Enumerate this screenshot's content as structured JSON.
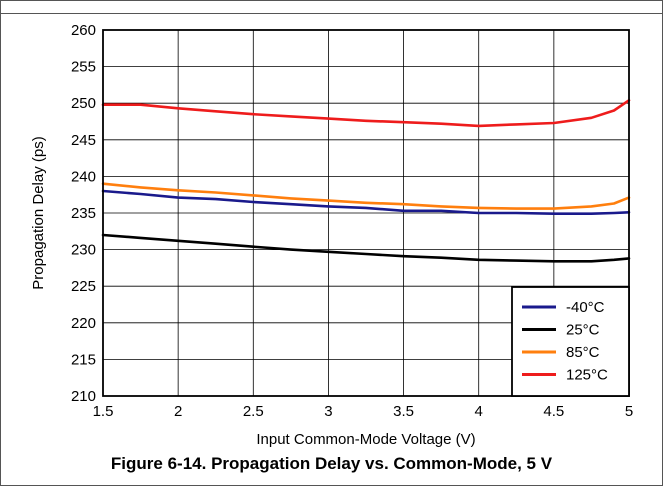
{
  "caption": "Figure 6-14. Propagation Delay vs. Common-Mode, 5 V",
  "chart_data": {
    "type": "line",
    "xlabel": "Input Common-Mode Voltage (V)",
    "ylabel": "Propagation Delay (ps)",
    "xlim": [
      1.5,
      5
    ],
    "ylim": [
      210,
      260
    ],
    "xticks": [
      "1.5",
      "2",
      "2.5",
      "3",
      "3.5",
      "4",
      "4.5",
      "5"
    ],
    "yticks": [
      "210",
      "215",
      "220",
      "225",
      "230",
      "235",
      "240",
      "245",
      "250",
      "255",
      "260"
    ],
    "grid": true,
    "legend_position": "bottom-right",
    "x": [
      1.5,
      1.75,
      2.0,
      2.25,
      2.5,
      2.75,
      3.0,
      3.25,
      3.5,
      3.75,
      4.0,
      4.25,
      4.5,
      4.75,
      4.9,
      5.0
    ],
    "series": [
      {
        "name": "-40°C",
        "color": "#1a1a8c",
        "values": [
          238.0,
          237.6,
          237.1,
          236.9,
          236.5,
          236.2,
          235.9,
          235.7,
          235.3,
          235.3,
          235.0,
          235.0,
          234.9,
          234.9,
          235.0,
          235.1
        ]
      },
      {
        "name": "25°C",
        "color": "#000000",
        "values": [
          232.0,
          231.6,
          231.2,
          230.8,
          230.4,
          230.0,
          229.7,
          229.4,
          229.1,
          228.9,
          228.6,
          228.5,
          228.4,
          228.4,
          228.6,
          228.8
        ]
      },
      {
        "name": "85°C",
        "color": "#ff7f0e",
        "values": [
          239.0,
          238.5,
          238.1,
          237.8,
          237.4,
          237.0,
          236.7,
          236.4,
          236.2,
          235.9,
          235.7,
          235.6,
          235.6,
          235.9,
          236.3,
          237.1
        ]
      },
      {
        "name": "125°C",
        "color": "#ee1c1c",
        "values": [
          249.8,
          249.8,
          249.3,
          248.9,
          248.5,
          248.2,
          247.9,
          247.6,
          247.4,
          247.2,
          246.9,
          247.1,
          247.3,
          248.0,
          249.0,
          250.4
        ]
      }
    ]
  }
}
